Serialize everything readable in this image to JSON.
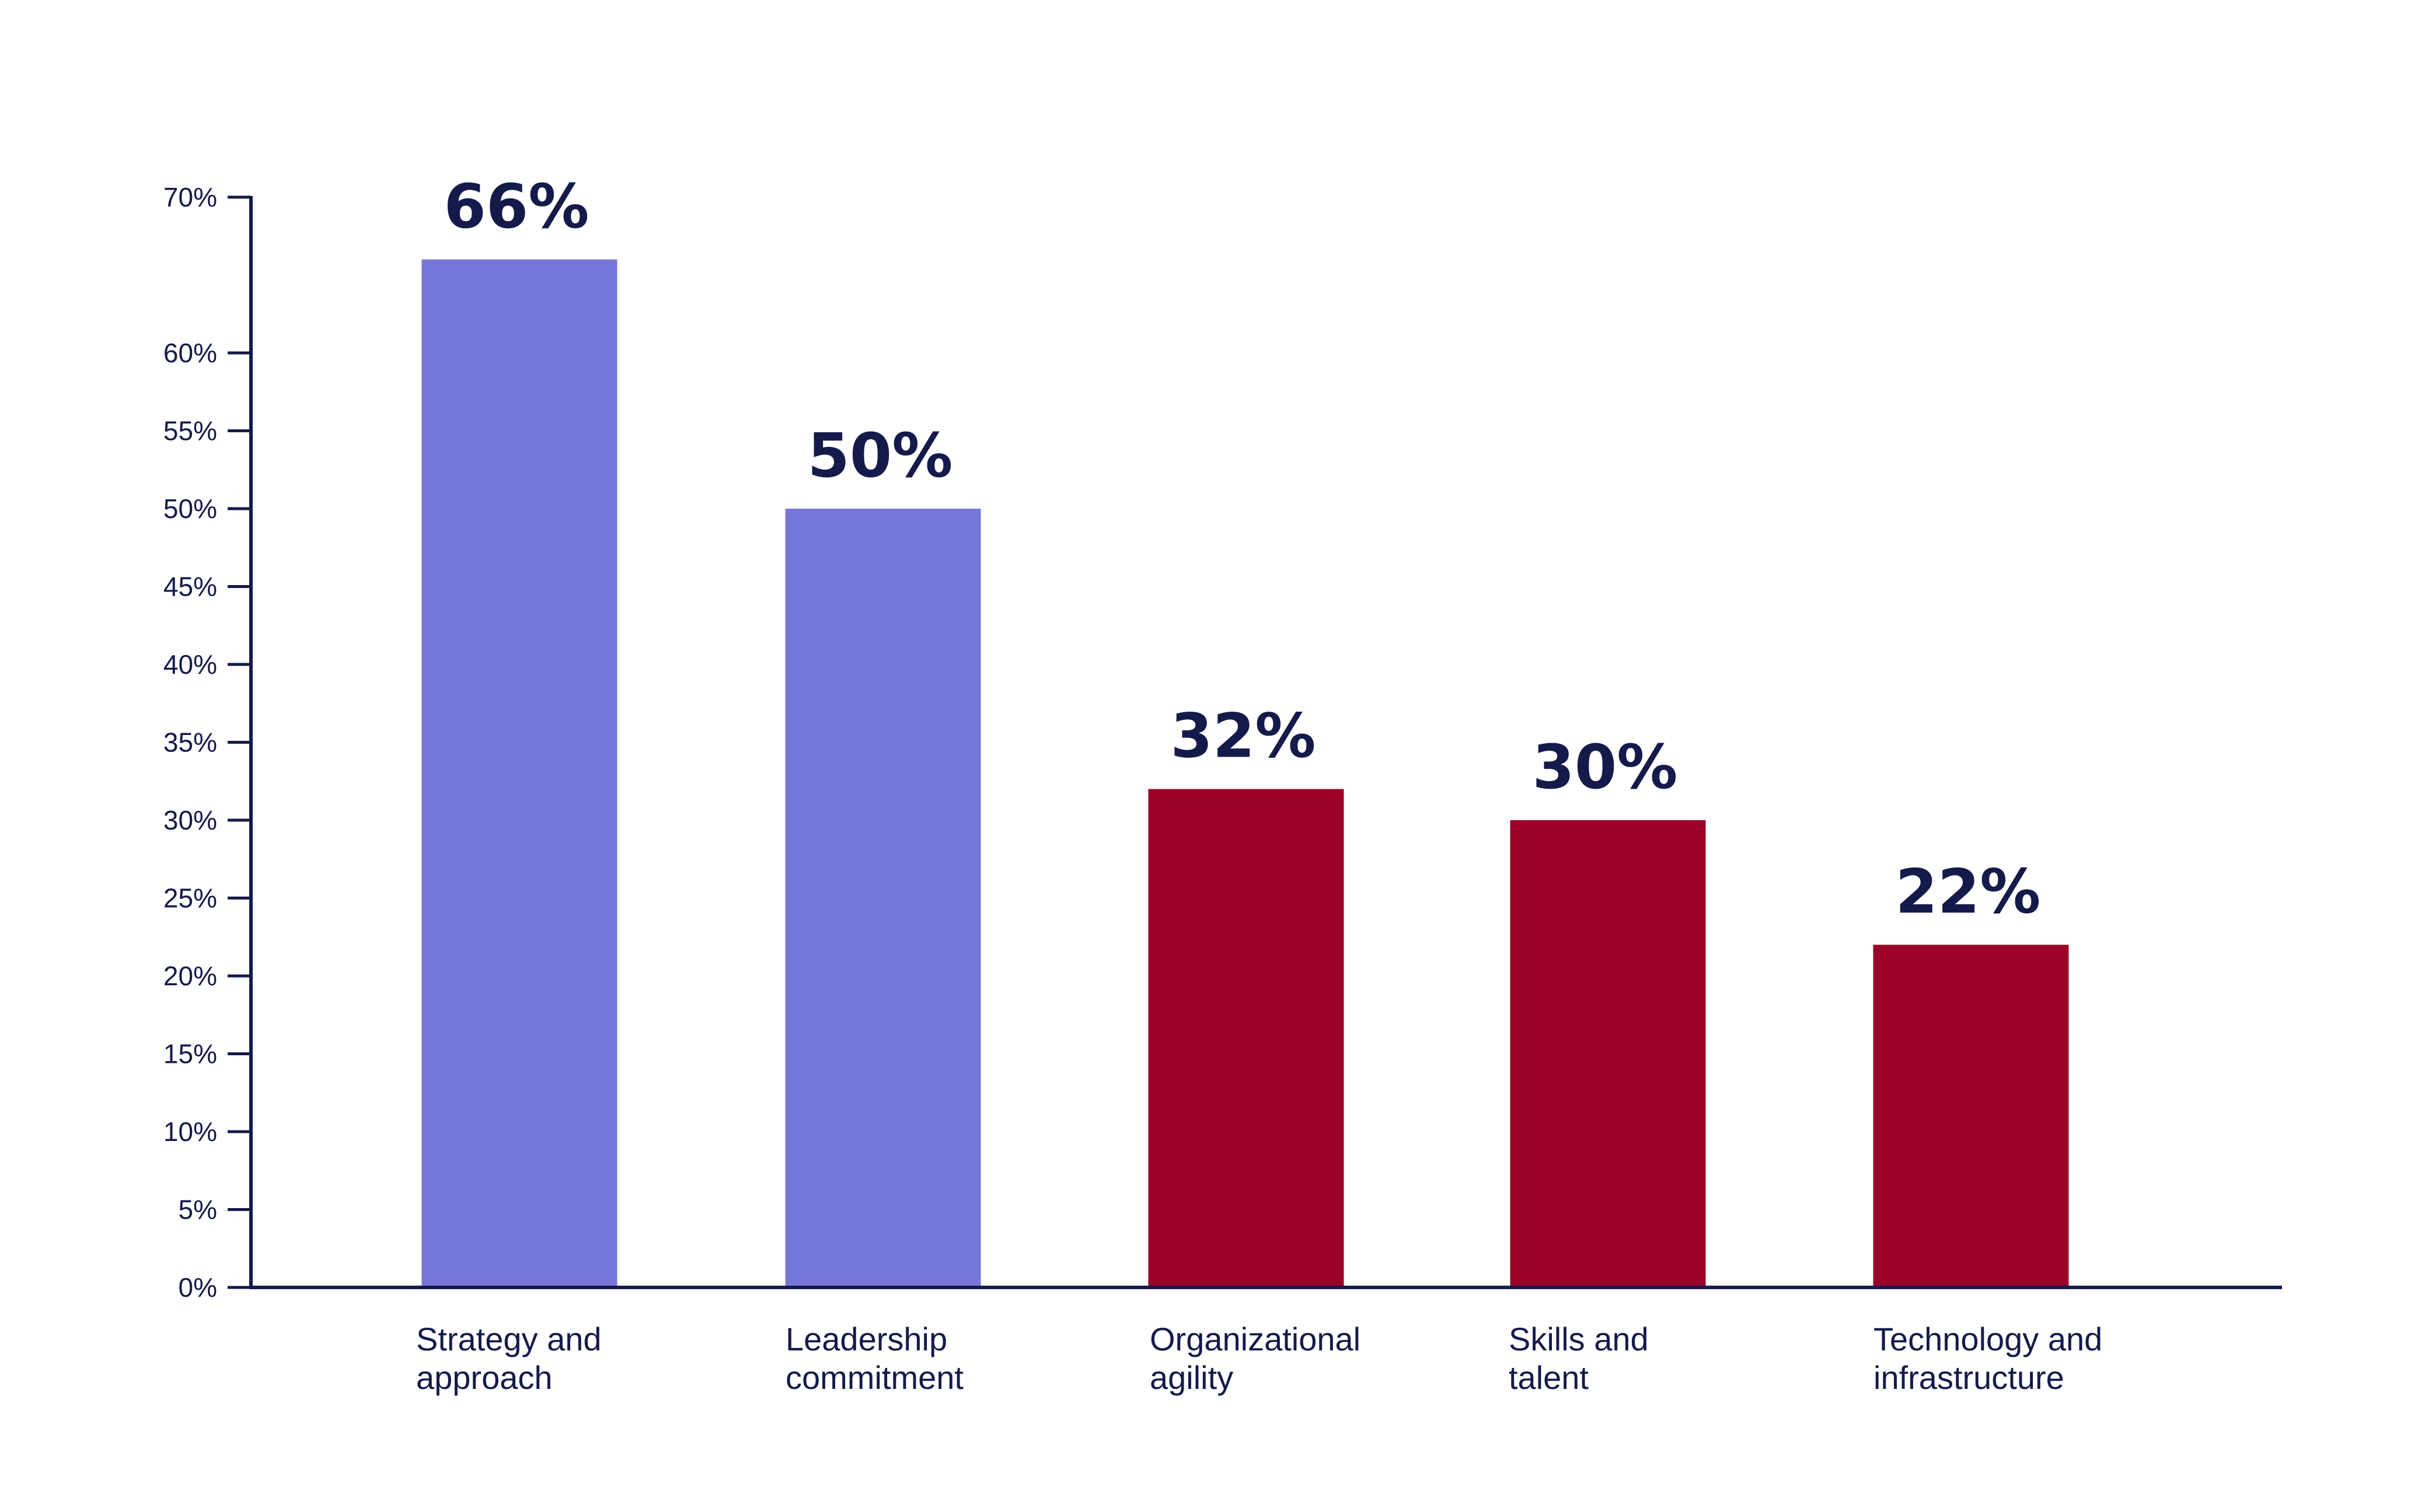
{
  "chart_data": {
    "type": "bar",
    "categories": [
      [
        "Strategy and",
        "approach"
      ],
      [
        "Leadership",
        "commitment"
      ],
      [
        "Organizational",
        "agility"
      ],
      [
        "Skills and",
        "talent"
      ],
      [
        "Technology and",
        "infrastructure"
      ]
    ],
    "values": [
      66,
      50,
      32,
      30,
      22
    ],
    "value_labels": [
      "66%",
      "50%",
      "32%",
      "30%",
      "22%"
    ],
    "bar_colors": [
      "#7777d9",
      "#7777d9",
      "#9b0029",
      "#9b0029",
      "#9b0029"
    ],
    "yticks": [
      0,
      5,
      10,
      15,
      20,
      25,
      30,
      35,
      40,
      45,
      50,
      55,
      60,
      70
    ],
    "ytick_labels": [
      "0%",
      "5%",
      "10%",
      "15%",
      "20%",
      "25%",
      "30%",
      "35%",
      "40%",
      "45%",
      "50%",
      "55%",
      "60%",
      "70%"
    ],
    "ylim": [
      0,
      70
    ],
    "title": "",
    "xlabel": "",
    "ylabel": "",
    "grid": false,
    "legend": "none",
    "axis_color": "#141a4a",
    "label_color": "#141a4a"
  }
}
